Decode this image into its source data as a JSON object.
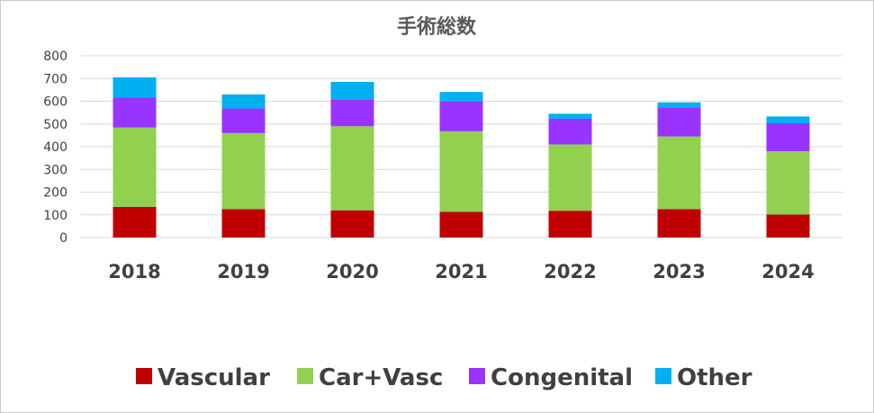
{
  "chart_data": {
    "type": "bar",
    "stacked": true,
    "title": "手術総数",
    "categories": [
      "2018",
      "2019",
      "2020",
      "2021",
      "2022",
      "2023",
      "2024"
    ],
    "series": [
      {
        "name": "Vascular",
        "color": "#c00000",
        "values": [
          135,
          125,
          120,
          113,
          118,
          125,
          101
        ]
      },
      {
        "name": "Car+Vasc",
        "color": "#92d050",
        "values": [
          349,
          335,
          370,
          355,
          292,
          320,
          279
        ]
      },
      {
        "name": "Congenital",
        "color": "#9933ff",
        "values": [
          132,
          108,
          116,
          130,
          113,
          128,
          123
        ]
      },
      {
        "name": "Other",
        "color": "#00b0f0",
        "values": [
          89,
          62,
          79,
          43,
          22,
          22,
          30
        ]
      }
    ],
    "ylim": [
      0,
      800
    ],
    "yticks": [
      0,
      100,
      200,
      300,
      400,
      500,
      600,
      700,
      800
    ],
    "grid": true,
    "legend_position": "bottom"
  }
}
